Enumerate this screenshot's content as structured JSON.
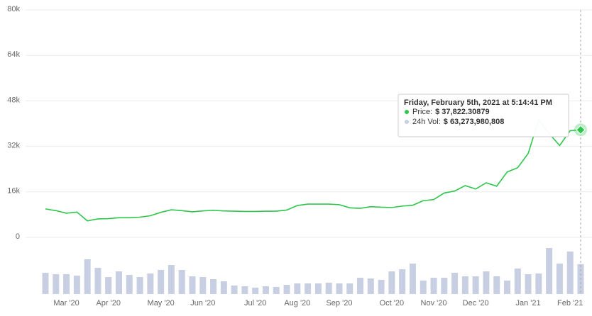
{
  "chart_data": {
    "type": "line",
    "categories": [
      null,
      null,
      "Mar '20",
      null,
      null,
      null,
      "Apr '20",
      null,
      null,
      null,
      null,
      "May '20",
      null,
      null,
      null,
      "Jun '20",
      null,
      null,
      null,
      null,
      "Jul '20",
      null,
      null,
      null,
      "Aug '20",
      null,
      null,
      null,
      "Sep '20",
      null,
      null,
      null,
      null,
      "Oct '20",
      null,
      null,
      null,
      "Nov '20",
      null,
      null,
      null,
      "Dec '20",
      null,
      null,
      null,
      null,
      "Jan '21",
      null,
      null,
      null,
      "Feb '21",
      null
    ],
    "series": [
      {
        "color": "#2dc54b",
        "values": [
          10000,
          9400,
          8500,
          8900,
          5800,
          6500,
          6600,
          6900,
          6900,
          7100,
          7600,
          8800,
          9700,
          9400,
          9000,
          9300,
          9500,
          9300,
          9200,
          9100,
          9100,
          9200,
          9200,
          9600,
          11200,
          11700,
          11700,
          11700,
          11500,
          10400,
          10200,
          10800,
          10600,
          10500,
          11000,
          11300,
          12900,
          13300,
          15600,
          16300,
          18200,
          17000,
          19200,
          18000,
          23000,
          24500,
          29500,
          41300,
          36500,
          32300,
          37500,
          37822.30879
        ]
      },
      {
        "color": "#c8cfe3",
        "values": [
          45000000000,
          42000000000,
          42000000000,
          39000000000,
          73500000000,
          55500000000,
          36000000000,
          48000000000,
          40500000000,
          36000000000,
          43500000000,
          51000000000,
          61500000000,
          51000000000,
          37500000000,
          36000000000,
          31500000000,
          27000000000,
          18000000000,
          16500000000,
          13500000000,
          16500000000,
          15000000000,
          19500000000,
          22500000000,
          22500000000,
          22500000000,
          24000000000,
          22500000000,
          22500000000,
          34500000000,
          33000000000,
          30000000000,
          48000000000,
          52500000000,
          64500000000,
          28500000000,
          34500000000,
          34500000000,
          45000000000,
          37500000000,
          37500000000,
          48000000000,
          37500000000,
          28500000000,
          54000000000,
          42000000000,
          43500000000,
          97500000000,
          64500000000,
          90000000000,
          63273980808
        ]
      }
    ],
    "ylim": [
      0,
      80000
    ],
    "yticks": [
      0,
      {
        "value": 16000,
        "label": "16k"
      },
      {
        "value": 32000,
        "label": "32k"
      },
      {
        "value": 48000,
        "label": "48k"
      },
      {
        "value": 64000,
        "label": "64k"
      },
      {
        "value": 80000,
        "label": "80k"
      }
    ],
    "grid": true,
    "tooltip": {
      "title": "Friday, February 5th, 2021 at 5:14:41 PM",
      "items": [
        {
          "name": "Price:",
          "label": "$ 37,822.30879"
        },
        {
          "name": "24h Vol:",
          "label": "$ 63,273,980,808"
        }
      ]
    }
  }
}
